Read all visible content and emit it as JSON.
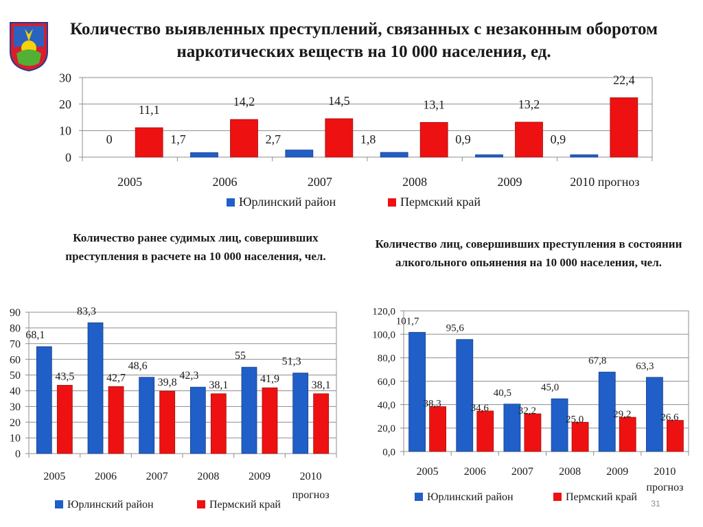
{
  "title": "Количество выявленных преступлений, связанных с незаконным оборотом наркотических веществ на 10 000 населения, ед.",
  "colors": {
    "series1": "#1f5fc7",
    "series2": "#ee1111"
  },
  "chart_data": [
    {
      "type": "bar",
      "title": "Количество выявленных преступлений, связанных с незаконным оборотом наркотических веществ на 10 000 населения, ед.",
      "categories": [
        "2005",
        "2006",
        "2007",
        "2008",
        "2009",
        "2010 прогноз"
      ],
      "series": [
        {
          "name": "Юрлинский район",
          "values": [
            0,
            1.7,
            2.7,
            1.8,
            0.9,
            0.9
          ],
          "labels": [
            "0",
            "1,7",
            "2,7",
            "1,8",
            "0,9",
            "0,9"
          ]
        },
        {
          "name": "Пермский край",
          "values": [
            11.1,
            14.2,
            14.5,
            13.1,
            13.2,
            22.4
          ],
          "labels": [
            "11,1",
            "14,2",
            "14,5",
            "13,1",
            "13,2",
            "22,4"
          ]
        }
      ],
      "ylim": [
        0,
        30
      ],
      "yticks": [
        "0",
        "10",
        "20",
        "30"
      ],
      "legend": "bottom",
      "grid": true
    },
    {
      "type": "bar",
      "title": "Количество ранее судимых лиц, совершивших  преступления в расчете на 10 000 населения, чел.",
      "categories": [
        "2005",
        "2006",
        "2007",
        "2008",
        "2009",
        "2010 прогноз"
      ],
      "series": [
        {
          "name": "Юрлинский район",
          "values": [
            68.1,
            83.3,
            48.6,
            42.3,
            55,
            51.3
          ],
          "labels": [
            "68,1",
            "83,3",
            "48,6",
            "42,3",
            "55",
            "51,3"
          ]
        },
        {
          "name": "Пермский край",
          "values": [
            43.5,
            42.7,
            39.8,
            38.1,
            41.9,
            38.1
          ],
          "labels": [
            "43,5",
            "42,7",
            "39,8",
            "38,1",
            "41,9",
            "38,1"
          ]
        }
      ],
      "ylim": [
        0,
        90
      ],
      "yticks": [
        "0",
        "10",
        "20",
        "30",
        "40",
        "50",
        "60",
        "70",
        "80",
        "90"
      ],
      "legend": "bottom",
      "grid": true
    },
    {
      "type": "bar",
      "title": "Количество лиц, совершивших преступления в состоянии алкогольного опьянения на 10 000 населения, чел.",
      "categories": [
        "2005",
        "2006",
        "2007",
        "2008",
        "2009",
        "2010 прогноз"
      ],
      "series": [
        {
          "name": "Юрлинский район",
          "values": [
            101.7,
            95.6,
            40.5,
            45.0,
            67.8,
            63.3
          ],
          "labels": [
            "101,7",
            "95,6",
            "40,5",
            "45,0",
            "67,8",
            "63,3"
          ]
        },
        {
          "name": "Пермский край",
          "values": [
            38.3,
            34.6,
            32.2,
            25.0,
            29.2,
            26.6
          ],
          "labels": [
            "38,3",
            "34,6",
            "32,2",
            "25,0",
            "29,2",
            "26,6"
          ]
        }
      ],
      "ylim": [
        0,
        120
      ],
      "yticks": [
        "0,0",
        "20,0",
        "40,0",
        "60,0",
        "80,0",
        "100,0",
        "120,0"
      ],
      "legend": "bottom",
      "grid": true
    }
  ],
  "slide_number": "31"
}
